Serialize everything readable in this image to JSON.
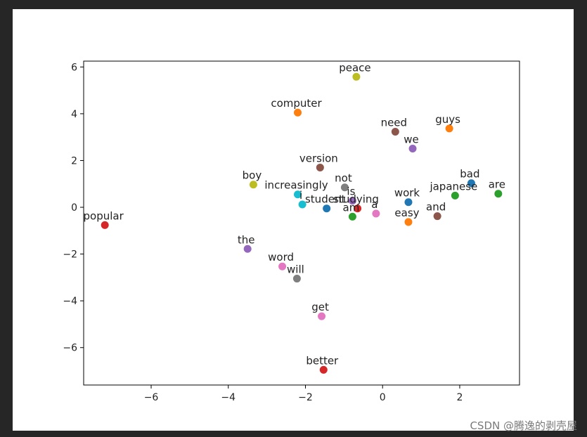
{
  "watermark": "CSDN @腾逸的剥壳屋",
  "chart_data": {
    "type": "scatter",
    "title": "",
    "xlabel": "",
    "ylabel": "",
    "xlim": [
      -7.75,
      3.55
    ],
    "ylim": [
      -7.6,
      6.25
    ],
    "xticks": [
      -6,
      -4,
      -2,
      0,
      2
    ],
    "yticks": [
      -6,
      -4,
      -2,
      0,
      2,
      4,
      6
    ],
    "grid": false,
    "points": [
      {
        "label": "peace",
        "x": -0.68,
        "y": 5.58,
        "color": "#bcbd22"
      },
      {
        "label": "computer",
        "x": -2.2,
        "y": 4.05,
        "color": "#ff7f0e"
      },
      {
        "label": "need",
        "x": 0.33,
        "y": 3.23,
        "color": "#8c564b"
      },
      {
        "label": "guys",
        "x": 1.73,
        "y": 3.37,
        "color": "#ff7f0e"
      },
      {
        "label": "we",
        "x": 0.78,
        "y": 2.51,
        "color": "#9467bd"
      },
      {
        "label": "version",
        "x": -1.62,
        "y": 1.7,
        "color": "#8c564b"
      },
      {
        "label": "boy",
        "x": -3.35,
        "y": 0.97,
        "color": "#bcbd22"
      },
      {
        "label": "increasingly",
        "x": -2.2,
        "y": 0.55,
        "color": "#17becf"
      },
      {
        "label": "not",
        "x": -0.98,
        "y": 0.85,
        "color": "#7f7f7f"
      },
      {
        "label": "bad",
        "x": 2.3,
        "y": 1.03,
        "color": "#1f77b4"
      },
      {
        "label": "are",
        "x": 3.0,
        "y": 0.58,
        "color": "#2ca02c"
      },
      {
        "label": "japanese",
        "x": 1.88,
        "y": 0.5,
        "color": "#2ca02c"
      },
      {
        "label": "is",
        "x": -0.78,
        "y": 0.28,
        "color": "#9467bd"
      },
      {
        "label": "work",
        "x": 0.67,
        "y": 0.22,
        "color": "#1f77b4"
      },
      {
        "label": "i",
        "x": -2.08,
        "y": 0.12,
        "color": "#17becf"
      },
      {
        "label": "student",
        "x": -1.45,
        "y": -0.05,
        "color": "#1f77b4"
      },
      {
        "label": "studying",
        "x": -0.65,
        "y": -0.05,
        "color": "#d62728"
      },
      {
        "label": "am",
        "x": -0.78,
        "y": -0.4,
        "color": "#2ca02c"
      },
      {
        "label": "a",
        "x": -0.17,
        "y": -0.27,
        "color": "#e377c2"
      },
      {
        "label": "easy",
        "x": 0.67,
        "y": -0.63,
        "color": "#ff7f0e"
      },
      {
        "label": "and",
        "x": 1.42,
        "y": -0.38,
        "color": "#8c564b"
      },
      {
        "label": "popular",
        "x": -7.2,
        "y": -0.76,
        "color": "#d62728"
      },
      {
        "label": "the",
        "x": -3.5,
        "y": -1.78,
        "color": "#9467bd"
      },
      {
        "label": "word",
        "x": -2.6,
        "y": -2.53,
        "color": "#e377c2"
      },
      {
        "label": "will",
        "x": -2.22,
        "y": -3.05,
        "color": "#7f7f7f"
      },
      {
        "label": "get",
        "x": -1.58,
        "y": -4.66,
        "color": "#e377c2"
      },
      {
        "label": "better",
        "x": -1.53,
        "y": -6.95,
        "color": "#d62728"
      }
    ]
  }
}
